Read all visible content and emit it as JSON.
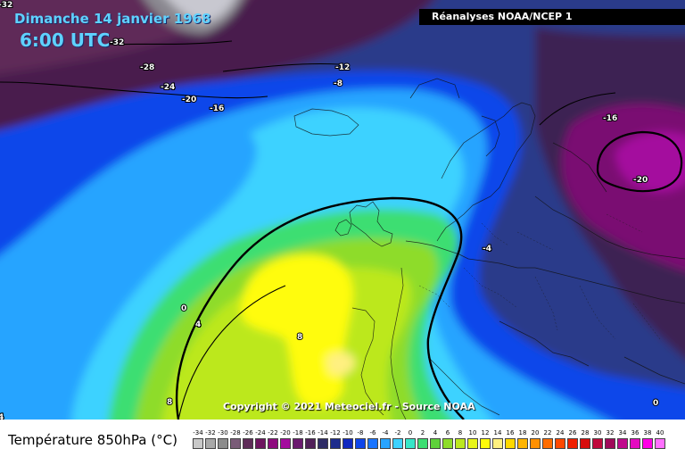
{
  "header": {
    "date": "Dimanche 14 janvier 1968",
    "time": "6:00 UTC",
    "source": "Réanalyses NOAA/NCEP 1"
  },
  "footer": {
    "title": "Température 850hPa (°C)",
    "copyright": "Copyright © 2021 Meteociel.fr - Source NOAA"
  },
  "legend": {
    "values": [
      "-34",
      "-32",
      "-30",
      "-28",
      "-26",
      "-24",
      "-22",
      "-20",
      "-18",
      "-16",
      "-14",
      "-12",
      "-10",
      "-8",
      "-6",
      "-4",
      "-2",
      "0",
      "2",
      "4",
      "6",
      "8",
      "10",
      "12",
      "14",
      "16",
      "18",
      "20",
      "22",
      "24",
      "26",
      "28",
      "30",
      "32",
      "34",
      "36",
      "38",
      "40"
    ],
    "colors": [
      "#c8c8c8",
      "#a8a8a8",
      "#8c8c8c",
      "#7a5c78",
      "#5e2c58",
      "#6e1560",
      "#8e0a7e",
      "#a40b9e",
      "#6a1a6e",
      "#502058",
      "#2e2c66",
      "#1e2c8c",
      "#1028c0",
      "#0f46ea",
      "#1a74ff",
      "#28a4ff",
      "#3ed2ff",
      "#36e6c8",
      "#3cde72",
      "#5ed23a",
      "#8edc2a",
      "#bce81e",
      "#e8f41a",
      "#fffc0a",
      "#fff080",
      "#ffd800",
      "#ffb400",
      "#ff9000",
      "#ff6c00",
      "#ff4800",
      "#f02000",
      "#d80e0e",
      "#c00a3c",
      "#a00a5a",
      "#c00a8c",
      "#e40ac0",
      "#ff00e6",
      "#ff70ff"
    ]
  },
  "contour_labels": [
    "-32",
    "-28",
    "-24",
    "-20",
    "-16",
    "-12",
    "-8",
    "-4",
    "0",
    "4",
    "8",
    "-16",
    "-20",
    "-32",
    "4",
    "8",
    "0"
  ],
  "colors": {
    "grey_pole": "#b8b8c0",
    "deep_purple": "#4a1a4e",
    "navy": "#1e2c8c",
    "blue": "#0f46ea",
    "cyan": "#3ed2ff",
    "green": "#3cde72",
    "yellow_green": "#bce81e",
    "yellow": "#fffc0a",
    "magenta": "#a40b9e"
  }
}
